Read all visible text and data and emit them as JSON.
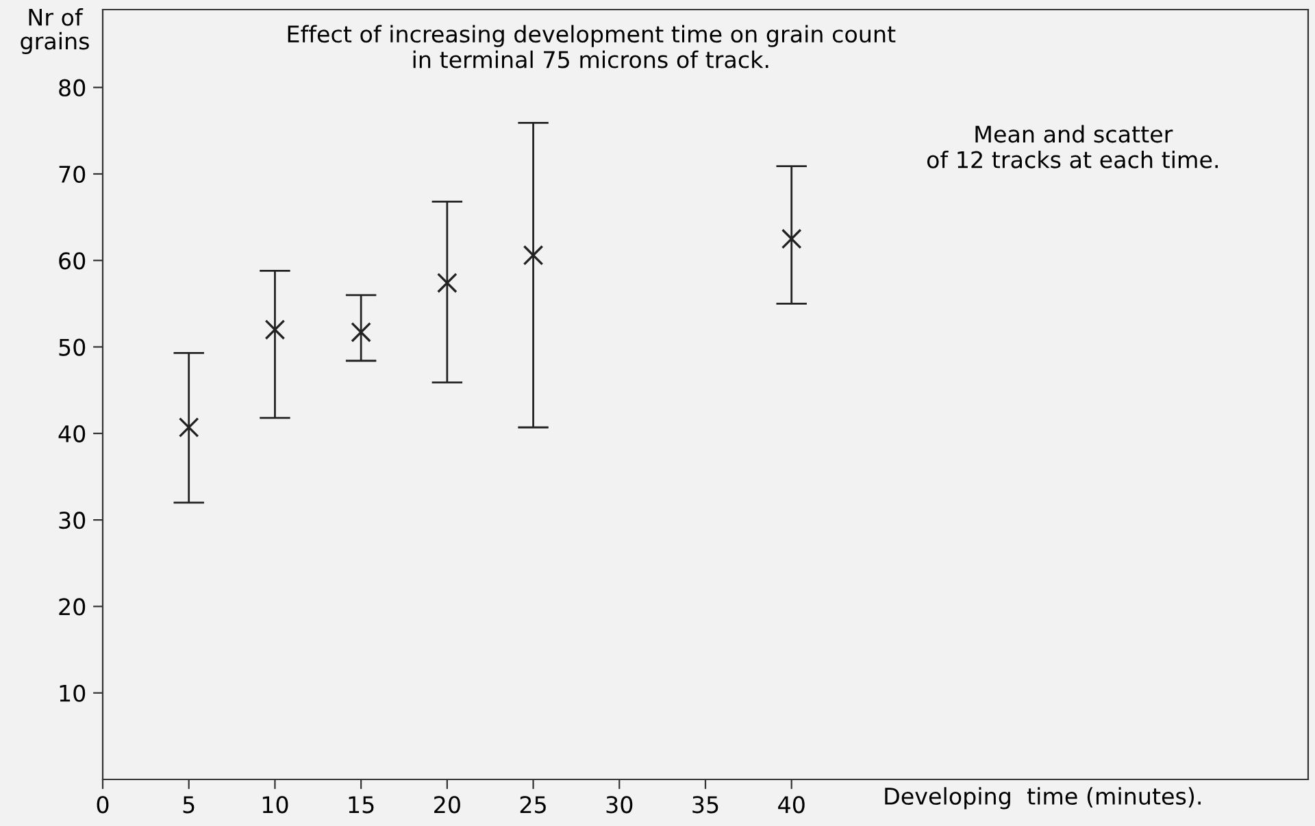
{
  "chart_data": {
    "type": "scatter",
    "title": "Effect of increasing development time on grain count\nin terminal 75 microns of track.",
    "xlabel": "Developing  time (minutes).",
    "ylabel": "Nr of\ngrains",
    "annotations": [
      "Mean and scatter\nof 12 tracks at each time."
    ],
    "x": [
      5,
      10,
      15,
      20,
      25,
      40
    ],
    "values": [
      40.7,
      52.0,
      51.7,
      57.4,
      60.6,
      62.5
    ],
    "errors": [
      [
        32.0,
        49.3
      ],
      [
        41.8,
        58.8
      ],
      [
        48.4,
        56.0
      ],
      [
        45.9,
        66.8
      ],
      [
        40.7,
        75.9
      ],
      [
        55.0,
        70.9
      ]
    ],
    "color": "#222222",
    "marker": "cross",
    "grid": false,
    "xlim": [
      0,
      70
    ],
    "xticks": [
      0,
      5,
      10,
      15,
      20,
      25,
      30,
      35,
      40
    ],
    "ylim": [
      0,
      89
    ],
    "yticks": [
      10,
      20,
      30,
      40,
      50,
      60,
      70,
      80
    ]
  }
}
